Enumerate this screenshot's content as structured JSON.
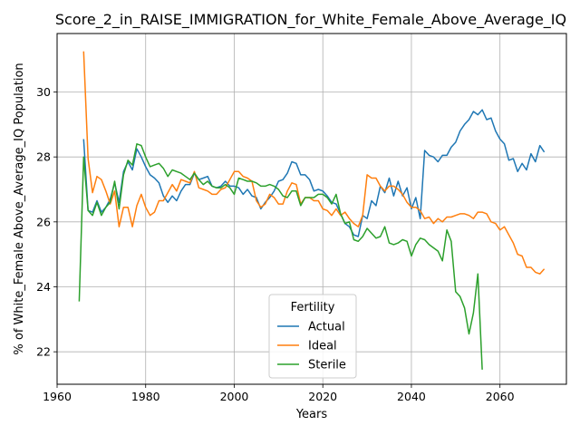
{
  "chart_data": {
    "type": "line",
    "title": "Score_2_in_RAISE_IMMIGRATION_for_White_Female_Above_Average_IQ",
    "xlabel": "Years",
    "ylabel": "% of White_Female Above_Average_IQ Population",
    "xlim": [
      1960,
      2075
    ],
    "ylim": [
      21.0,
      31.8
    ],
    "xticks": [
      1960,
      1980,
      2000,
      2020,
      2040,
      2060
    ],
    "yticks": [
      22,
      24,
      26,
      28,
      30
    ],
    "grid": true,
    "legend": {
      "title": "Fertility",
      "placement": "lower center"
    },
    "series": [
      {
        "name": "Actual",
        "color": "#1f77b4",
        "x": [
          1966,
          1967,
          1968,
          1969,
          1970,
          1971,
          1972,
          1973,
          1974,
          1975,
          1976,
          1977,
          1978,
          1979,
          1980,
          1981,
          1982,
          1983,
          1984,
          1985,
          1986,
          1987,
          1988,
          1989,
          1990,
          1991,
          1992,
          1993,
          1994,
          1995,
          1996,
          1997,
          1998,
          1999,
          2000,
          2001,
          2002,
          2003,
          2004,
          2005,
          2006,
          2007,
          2008,
          2009,
          2010,
          2011,
          2012,
          2013,
          2014,
          2015,
          2016,
          2017,
          2018,
          2019,
          2020,
          2021,
          2022,
          2023,
          2024,
          2025,
          2026,
          2027,
          2028,
          2029,
          2030,
          2031,
          2032,
          2033,
          2034,
          2035,
          2036,
          2037,
          2038,
          2039,
          2040,
          2041,
          2042,
          2043,
          2044,
          2045,
          2046,
          2047,
          2048,
          2049,
          2050,
          2051,
          2052,
          2053,
          2054,
          2055,
          2056,
          2057,
          2058,
          2059,
          2060,
          2061,
          2062,
          2063,
          2064,
          2065,
          2066,
          2067,
          2068,
          2069,
          2070
        ],
        "y": [
          28.55,
          26.35,
          26.3,
          26.65,
          26.3,
          26.45,
          26.7,
          27.2,
          26.6,
          27.55,
          27.85,
          27.6,
          28.25,
          28.0,
          27.7,
          27.45,
          27.35,
          27.2,
          26.8,
          26.6,
          26.8,
          26.65,
          26.95,
          27.15,
          27.15,
          27.5,
          27.3,
          27.35,
          27.4,
          27.1,
          27.05,
          27.1,
          27.25,
          27.1,
          27.1,
          27.05,
          26.85,
          27.0,
          26.8,
          26.75,
          26.4,
          26.6,
          26.75,
          26.95,
          27.25,
          27.3,
          27.5,
          27.85,
          27.8,
          27.45,
          27.45,
          27.3,
          26.95,
          27.0,
          26.95,
          26.8,
          26.6,
          26.55,
          26.25,
          25.95,
          25.85,
          25.6,
          25.55,
          26.2,
          26.1,
          26.65,
          26.5,
          27.1,
          26.9,
          27.35,
          26.8,
          27.25,
          26.8,
          27.05,
          26.4,
          26.75,
          26.1,
          28.2,
          28.05,
          28.0,
          27.85,
          28.05,
          28.05,
          28.3,
          28.45,
          28.8,
          29.0,
          29.15,
          29.4,
          29.3,
          29.45,
          29.15,
          29.2,
          28.8,
          28.55,
          28.4,
          27.9,
          27.95,
          27.55,
          27.8,
          27.6,
          28.1,
          27.85,
          28.35,
          28.15
        ]
      },
      {
        "name": "Ideal",
        "color": "#ff7f0e",
        "x": [
          1966,
          1967,
          1968,
          1969,
          1970,
          1971,
          1972,
          1973,
          1974,
          1975,
          1976,
          1977,
          1978,
          1979,
          1980,
          1981,
          1982,
          1983,
          1984,
          1985,
          1986,
          1987,
          1988,
          1989,
          1990,
          1991,
          1992,
          1993,
          1994,
          1995,
          1996,
          1997,
          1998,
          1999,
          2000,
          2001,
          2002,
          2003,
          2004,
          2005,
          2006,
          2007,
          2008,
          2009,
          2010,
          2011,
          2012,
          2013,
          2014,
          2015,
          2016,
          2017,
          2018,
          2019,
          2020,
          2021,
          2022,
          2023,
          2024,
          2025,
          2026,
          2027,
          2028,
          2029,
          2030,
          2031,
          2032,
          2033,
          2034,
          2035,
          2036,
          2037,
          2038,
          2039,
          2040,
          2041,
          2042,
          2043,
          2044,
          2045,
          2046,
          2047,
          2048,
          2049,
          2050,
          2051,
          2052,
          2053,
          2054,
          2055,
          2056,
          2057,
          2058,
          2059,
          2060,
          2061,
          2062,
          2063,
          2064,
          2065,
          2066,
          2067,
          2068,
          2069,
          2070
        ],
        "y": [
          31.25,
          27.95,
          26.9,
          27.4,
          27.3,
          26.95,
          26.55,
          26.95,
          25.85,
          26.45,
          26.45,
          25.85,
          26.5,
          26.85,
          26.45,
          26.2,
          26.3,
          26.65,
          26.65,
          26.9,
          27.15,
          26.95,
          27.3,
          27.25,
          27.2,
          27.55,
          27.05,
          27.0,
          26.95,
          26.85,
          26.85,
          27.0,
          27.05,
          27.3,
          27.55,
          27.55,
          27.4,
          27.35,
          27.25,
          26.65,
          26.45,
          26.55,
          26.85,
          26.75,
          26.55,
          26.55,
          26.95,
          27.2,
          27.15,
          26.55,
          26.75,
          26.75,
          26.65,
          26.65,
          26.4,
          26.35,
          26.2,
          26.4,
          26.2,
          26.3,
          26.1,
          25.95,
          25.85,
          26.2,
          27.45,
          27.35,
          27.35,
          27.1,
          26.95,
          27.1,
          27.1,
          27.0,
          26.85,
          26.6,
          26.45,
          26.45,
          26.35,
          26.1,
          26.15,
          25.95,
          26.1,
          26.0,
          26.15,
          26.15,
          26.2,
          26.25,
          26.25,
          26.2,
          26.1,
          26.3,
          26.3,
          26.25,
          26.0,
          25.95,
          25.75,
          25.85,
          25.6,
          25.35,
          25.0,
          24.95,
          24.6,
          24.6,
          24.45,
          24.4,
          24.55
        ]
      },
      {
        "name": "Sterile",
        "color": "#2ca02c",
        "x": [
          1965,
          1966,
          1967,
          1968,
          1969,
          1970,
          1971,
          1972,
          1973,
          1974,
          1975,
          1976,
          1977,
          1978,
          1979,
          1980,
          1981,
          1982,
          1983,
          1984,
          1985,
          1986,
          1987,
          1988,
          1989,
          1990,
          1991,
          1992,
          1993,
          1994,
          1995,
          1996,
          1997,
          1998,
          1999,
          2000,
          2001,
          2002,
          2003,
          2004,
          2005,
          2006,
          2007,
          2008,
          2009,
          2010,
          2011,
          2012,
          2013,
          2014,
          2015,
          2016,
          2017,
          2018,
          2019,
          2020,
          2021,
          2022,
          2023,
          2024,
          2025,
          2026,
          2027,
          2028,
          2029,
          2030,
          2031,
          2032,
          2033,
          2034,
          2035,
          2036,
          2037,
          2038,
          2039,
          2040,
          2041,
          2042,
          2043,
          2044,
          2045,
          2046,
          2047,
          2048,
          2049,
          2050,
          2051,
          2052,
          2053,
          2054,
          2055,
          2056
        ],
        "y": [
          23.55,
          28.0,
          26.35,
          26.2,
          26.6,
          26.2,
          26.45,
          26.6,
          27.25,
          26.4,
          27.45,
          27.9,
          27.75,
          28.4,
          28.35,
          28.0,
          27.7,
          27.75,
          27.8,
          27.65,
          27.4,
          27.6,
          27.55,
          27.5,
          27.4,
          27.3,
          27.5,
          27.3,
          27.15,
          27.25,
          27.1,
          27.05,
          27.05,
          27.15,
          27.05,
          26.85,
          27.35,
          27.3,
          27.25,
          27.25,
          27.2,
          27.1,
          27.1,
          27.15,
          27.1,
          27.0,
          26.8,
          26.75,
          26.95,
          26.95,
          26.5,
          26.75,
          26.75,
          26.75,
          26.85,
          26.85,
          26.75,
          26.55,
          26.85,
          26.25,
          25.95,
          26.0,
          25.45,
          25.4,
          25.55,
          25.8,
          25.65,
          25.5,
          25.55,
          25.85,
          25.35,
          25.3,
          25.35,
          25.45,
          25.4,
          24.95,
          25.3,
          25.5,
          25.45,
          25.3,
          25.2,
          25.1,
          24.8,
          25.75,
          25.4,
          23.85,
          23.7,
          23.35,
          22.55,
          23.2,
          24.4,
          21.45
        ]
      }
    ]
  }
}
